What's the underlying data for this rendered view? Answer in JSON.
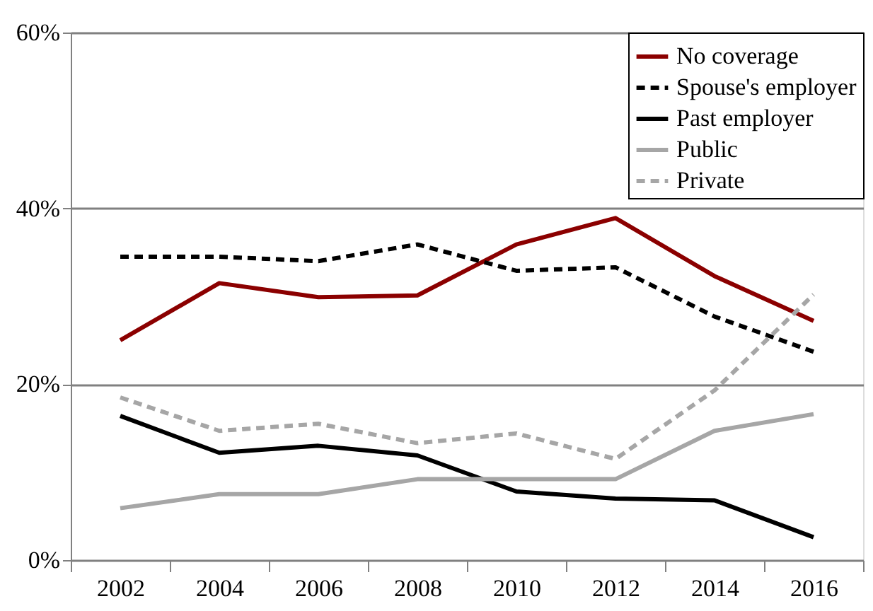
{
  "chart_data": {
    "type": "line",
    "categories": [
      "2002",
      "2004",
      "2006",
      "2008",
      "2010",
      "2012",
      "2014",
      "2016"
    ],
    "series": [
      {
        "name": "No coverage",
        "color": "#8b0000",
        "line_style": "solid",
        "values": [
          25.0,
          31.5,
          29.9,
          30.1,
          35.9,
          38.9,
          32.3,
          27.2
        ]
      },
      {
        "name": "Spouse's employer",
        "color": "#000000",
        "line_style": "dashed",
        "values": [
          34.5,
          34.5,
          34.0,
          35.9,
          32.9,
          33.3,
          27.7,
          23.7
        ]
      },
      {
        "name": "Past employer",
        "color": "#000000",
        "line_style": "solid",
        "values": [
          16.4,
          12.2,
          13.0,
          11.9,
          7.8,
          7.0,
          6.8,
          2.6
        ]
      },
      {
        "name": "Public",
        "color": "#a6a6a6",
        "line_style": "solid",
        "values": [
          5.9,
          7.5,
          7.5,
          9.2,
          9.2,
          9.2,
          14.7,
          16.6
        ]
      },
      {
        "name": "Private",
        "color": "#a6a6a6",
        "line_style": "dashed",
        "values": [
          18.5,
          14.7,
          15.5,
          13.3,
          14.4,
          11.5,
          19.3,
          30.2
        ]
      }
    ],
    "ylim": [
      0,
      60
    ],
    "yticks": [
      {
        "value": 0,
        "label": "0%"
      },
      {
        "value": 20,
        "label": "20%"
      },
      {
        "value": 40,
        "label": "40%"
      },
      {
        "value": 60,
        "label": "60%"
      }
    ],
    "grid": "y",
    "legend": "top right",
    "marker": "none"
  }
}
